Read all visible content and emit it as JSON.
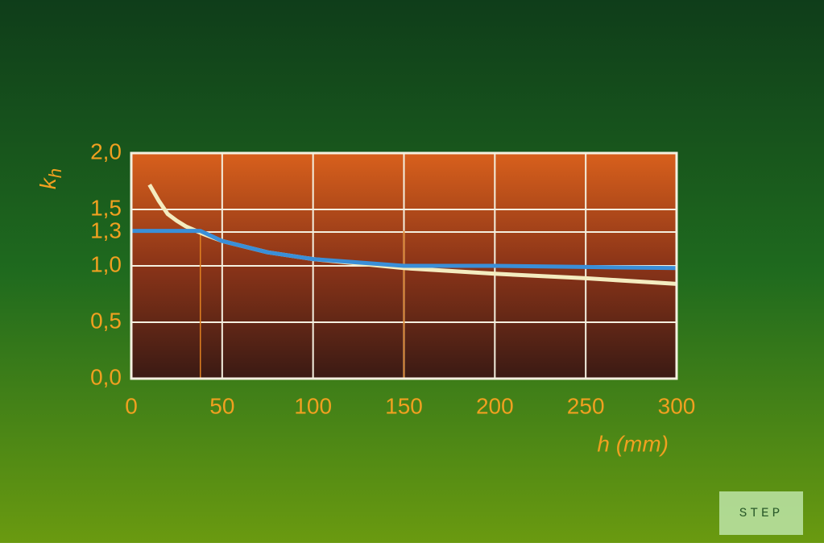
{
  "chart_data": {
    "type": "line",
    "y_label": {
      "main": "k",
      "sub": "h"
    },
    "x_label": "h (mm)",
    "xlim": [
      0,
      300
    ],
    "xticks": [
      0,
      50,
      100,
      150,
      200,
      250,
      300
    ],
    "ylim": [
      0,
      2
    ],
    "yticks": [
      {
        "value": 0,
        "label": "0,0"
      },
      {
        "value": 0.5,
        "label": "0,5"
      },
      {
        "value": 1.0,
        "label": "1,0"
      },
      {
        "value": 1.3,
        "label": "1,3"
      },
      {
        "value": 1.5,
        "label": "1,5"
      },
      {
        "value": 2.0,
        "label": "2,0"
      }
    ],
    "grid": true,
    "reference_lines_x": [
      38,
      150
    ],
    "series": [
      {
        "color": "#f4ecc0",
        "x": [
          10,
          15,
          20,
          25,
          30,
          40,
          50,
          75,
          100,
          150,
          200,
          250,
          300
        ],
        "values": [
          1.72,
          1.58,
          1.46,
          1.4,
          1.35,
          1.28,
          1.22,
          1.12,
          1.06,
          0.98,
          0.93,
          0.89,
          0.84
        ]
      },
      {
        "color": "#3a8fd8",
        "x": [
          0,
          38,
          50,
          75,
          100,
          150,
          200,
          250,
          300
        ],
        "values": [
          1.31,
          1.31,
          1.22,
          1.12,
          1.06,
          1.0,
          1.0,
          0.99,
          0.98
        ]
      }
    ]
  },
  "logo": "STEP"
}
